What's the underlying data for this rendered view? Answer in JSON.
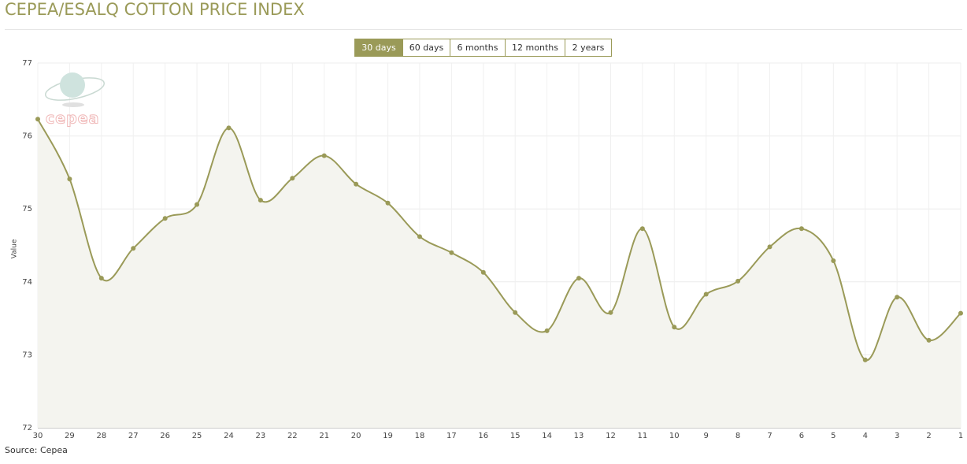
{
  "chart_data": {
    "type": "line",
    "title": "CEPEA/ESALQ COTTON PRICE INDEX",
    "range_buttons": [
      "30 days",
      "60 days",
      "6 months",
      "12 months",
      "2 years"
    ],
    "active_button": 0,
    "watermark": "cepea",
    "y_label": "Value",
    "source": "Source: Cepea",
    "categories": [
      "30",
      "29",
      "28",
      "27",
      "26",
      "25",
      "24",
      "23",
      "22",
      "21",
      "20",
      "19",
      "18",
      "17",
      "16",
      "15",
      "14",
      "13",
      "12",
      "11",
      "10",
      "9",
      "8",
      "7",
      "6",
      "5",
      "4",
      "3",
      "2",
      "1"
    ],
    "values": [
      76.23,
      75.41,
      74.05,
      74.46,
      74.87,
      75.06,
      76.11,
      75.12,
      75.42,
      75.73,
      75.34,
      75.08,
      74.62,
      74.4,
      74.13,
      73.58,
      73.33,
      74.05,
      73.58,
      74.73,
      73.38,
      73.83,
      74.01,
      74.48,
      74.73,
      74.29,
      72.93,
      73.79,
      73.2,
      73.57
    ],
    "color": "#9a9a58",
    "ylim": [
      72,
      77
    ],
    "yticks": [
      72,
      73,
      74,
      75,
      76,
      77
    ],
    "grid": true
  }
}
